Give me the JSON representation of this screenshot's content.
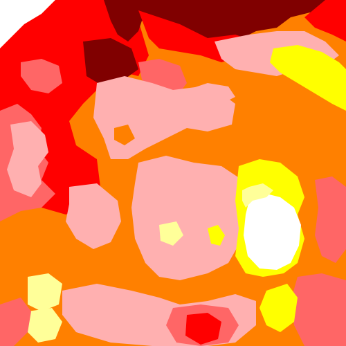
{
  "map": {
    "kind": "categorical raster heatmap",
    "legend": [],
    "palette": {
      "dark_red": "#800000",
      "red": "#ff0000",
      "salmon": "#ff6666",
      "pink": "#ffb0b0",
      "orange": "#ff8000",
      "yellow": "#ffff00",
      "pale_yellow": "#ffff99",
      "white": "#ffffff"
    },
    "background_color": "#ffffff"
  }
}
